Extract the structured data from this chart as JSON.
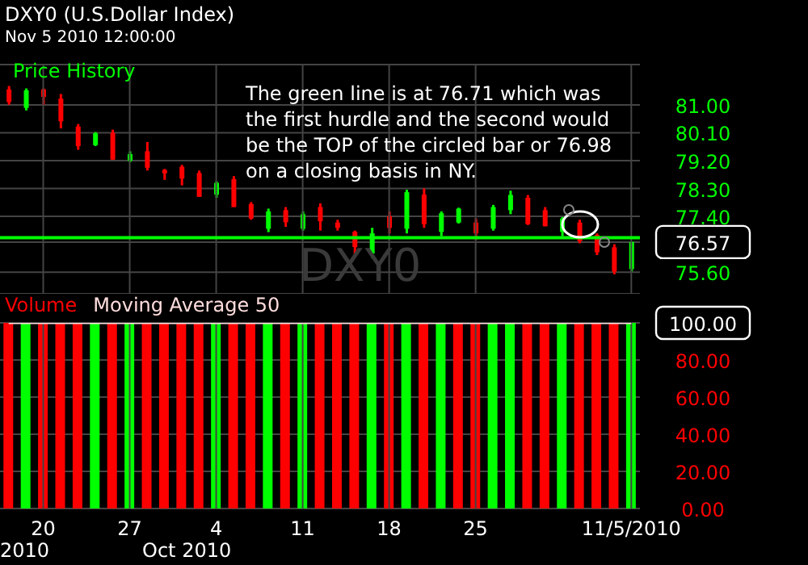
{
  "chart_data": [
    {
      "type": "candlestick",
      "title": "DXY0 (U.S.Dollar Index)",
      "subtitle": "Nov 5 2010 12:00:00",
      "annotations": [
        "Price History",
        "The green line is at 76.71 which was the first hurdle and the second would be the TOP of the circled bar or 76.98 on a closing basis in NY.",
        "DXY0"
      ],
      "categories": [
        null,
        null,
        null,
        null,
        null,
        null,
        null,
        null,
        null,
        null,
        null,
        null,
        null,
        null,
        null,
        null,
        null,
        null,
        null,
        null,
        null,
        null,
        null,
        null,
        null,
        null,
        null,
        null,
        null,
        null,
        null,
        null,
        null,
        null,
        null,
        null,
        null
      ],
      "ohlc": [
        [
          81.5,
          81.61,
          81.0,
          81.09
        ],
        [
          80.9,
          81.53,
          80.82,
          81.47
        ],
        [
          81.5,
          81.53,
          81.0,
          81.26
        ],
        [
          81.2,
          81.35,
          80.24,
          80.47
        ],
        [
          80.3,
          80.38,
          79.55,
          79.67
        ],
        [
          79.7,
          80.12,
          79.67,
          80.08
        ],
        [
          80.1,
          80.2,
          79.23,
          79.23
        ],
        [
          79.2,
          79.5,
          79.15,
          79.41
        ],
        [
          79.5,
          79.8,
          78.88,
          78.97
        ],
        [
          78.9,
          78.93,
          78.58,
          78.79
        ],
        [
          79.0,
          79.06,
          78.4,
          78.62
        ],
        [
          78.8,
          78.88,
          78.03,
          78.03
        ],
        [
          78.1,
          78.53,
          78.0,
          78.48
        ],
        [
          78.6,
          78.7,
          77.7,
          77.7
        ],
        [
          77.8,
          77.86,
          77.29,
          77.33
        ],
        [
          77.0,
          77.65,
          76.89,
          77.56
        ],
        [
          77.6,
          77.7,
          77.06,
          77.21
        ],
        [
          77.0,
          77.56,
          76.94,
          77.47
        ],
        [
          77.7,
          77.82,
          76.94,
          77.24
        ],
        [
          77.2,
          77.29,
          76.94,
          77.03
        ],
        [
          76.9,
          76.94,
          76.15,
          76.41
        ],
        [
          76.2,
          77.03,
          76.06,
          76.85
        ],
        [
          77.4,
          77.56,
          76.85,
          77.03
        ],
        [
          77.0,
          78.26,
          76.85,
          78.18
        ],
        [
          78.1,
          78.3,
          77.03,
          77.15
        ],
        [
          76.9,
          77.56,
          76.76,
          77.5
        ],
        [
          77.2,
          77.68,
          77.17,
          77.65
        ],
        [
          77.2,
          77.33,
          76.64,
          76.85
        ],
        [
          77.0,
          77.77,
          76.94,
          77.7
        ],
        [
          77.6,
          78.23,
          77.47,
          78.09
        ],
        [
          78.0,
          78.09,
          77.12,
          77.15
        ],
        [
          77.6,
          77.7,
          77.08,
          77.08
        ],
        [
          76.9,
          77.38,
          76.76,
          77.33
        ],
        [
          77.2,
          77.29,
          76.53,
          76.6
        ],
        [
          76.8,
          76.85,
          76.15,
          76.24
        ],
        [
          76.4,
          76.5,
          75.53,
          75.62
        ],
        [
          75.7,
          76.59,
          75.62,
          76.57
        ]
      ],
      "colors": [
        "#ff0000",
        "#00ff00",
        "#ff0000",
        "#ff0000",
        "#ff0000",
        "#00ff00",
        "#ff0000",
        "#00ff00",
        "#ff0000",
        "#ff0000",
        "#ff0000",
        "#ff0000",
        "#00ff00",
        "#ff0000",
        "#ff0000",
        "#00ff00",
        "#ff0000",
        "#00ff00",
        "#ff0000",
        "#ff0000",
        "#ff0000",
        "#00ff00",
        "#ff0000",
        "#00ff00",
        "#ff0000",
        "#00ff00",
        "#00ff00",
        "#ff0000",
        "#00ff00",
        "#00ff00",
        "#ff0000",
        "#ff0000",
        "#00ff00",
        "#ff0000",
        "#ff0000",
        "#ff0000",
        "#00ff00"
      ],
      "ylim": [
        74.9,
        82.3
      ],
      "yticks": [
        {
          "value": 75.6,
          "label": "75.60"
        },
        {
          "value": 76.57,
          "label": "76.57"
        },
        {
          "value": 77.4,
          "label": "77.40"
        },
        {
          "value": 78.3,
          "label": "78.30"
        },
        {
          "value": 79.2,
          "label": "79.20"
        },
        {
          "value": 80.1,
          "label": "80.10"
        },
        {
          "value": 81,
          "label": "81.00"
        }
      ],
      "ref_lines": [
        {
          "axis": "y",
          "value": 76.71,
          "color": "#00ff00"
        }
      ],
      "grid": true,
      "tick_labels": "y"
    },
    {
      "type": "bar",
      "categories": [
        null,
        null,
        "20",
        null,
        null,
        null,
        null,
        "27",
        null,
        null,
        null,
        null,
        "4",
        null,
        null,
        null,
        null,
        "11",
        null,
        null,
        null,
        null,
        "18",
        null,
        null,
        null,
        null,
        "25",
        null,
        null,
        null,
        null,
        null,
        null,
        null,
        null,
        "11/5/2010"
      ],
      "series": [
        {
          "name": "Volume",
          "color": "#ff0000",
          "colors": [
            "#ff0000",
            "#00ff00",
            "#ff0000",
            "#ff0000",
            "#ff0000",
            "#00ff00",
            "#ff0000",
            "#00ff00",
            "#ff0000",
            "#ff0000",
            "#ff0000",
            "#ff0000",
            "#00ff00",
            "#ff0000",
            "#ff0000",
            "#00ff00",
            "#ff0000",
            "#00ff00",
            "#ff0000",
            "#ff0000",
            "#ff0000",
            "#00ff00",
            "#ff0000",
            "#00ff00",
            "#ff0000",
            "#00ff00",
            "#ff0000",
            "#ff0000",
            "#00ff00",
            "#00ff00",
            "#ff0000",
            "#ff0000",
            "#00ff00",
            "#ff0000",
            "#ff0000",
            "#ff0000",
            "#00ff00"
          ],
          "values": [
            100,
            100,
            100,
            100,
            100,
            100,
            100,
            100,
            100,
            100,
            100,
            100,
            100,
            100,
            100,
            100,
            100,
            100,
            100,
            100,
            100,
            100,
            100,
            100,
            100,
            100,
            100,
            100,
            100,
            100,
            100,
            100,
            100,
            100,
            100,
            100,
            100
          ]
        },
        {
          "name": "Moving Average 50",
          "type": "line",
          "color": "#ffdddd",
          "values": [
            100,
            100,
            100,
            100,
            100,
            100,
            100,
            100,
            100,
            100,
            100,
            100,
            100,
            100,
            100,
            100,
            100,
            100,
            100,
            100,
            100,
            100,
            100,
            100,
            100,
            100,
            100,
            100,
            100,
            100,
            100,
            100,
            100,
            100,
            100,
            100,
            100
          ]
        }
      ],
      "ylim": [
        0,
        100
      ],
      "yticks": [
        {
          "value": 0,
          "label": "0.00"
        },
        {
          "value": 20,
          "label": "20.00"
        },
        {
          "value": 40,
          "label": "40.00"
        },
        {
          "value": 60,
          "label": "60.00"
        },
        {
          "value": 80,
          "label": "80.00"
        },
        {
          "value": 100,
          "label": "100.00"
        }
      ],
      "annotations": [
        "2010",
        "Oct 2010"
      ],
      "grid": true,
      "legend": "top left"
    }
  ]
}
